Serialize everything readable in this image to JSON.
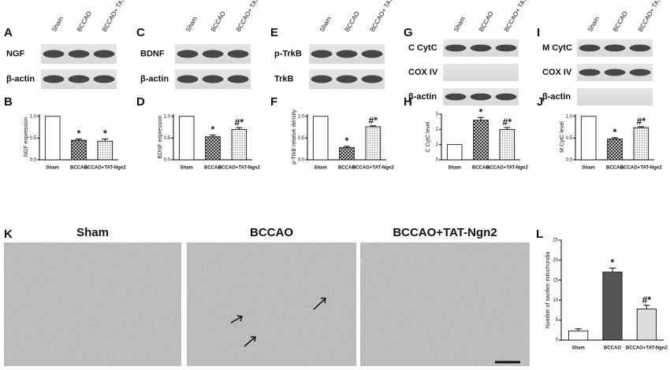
{
  "panels": [
    "A",
    "B",
    "C",
    "D",
    "E",
    "F",
    "G",
    "H",
    "I",
    "J",
    "K",
    "L"
  ],
  "blots": [
    {
      "lanes": [
        "Sham",
        "BCCAO",
        "BCCAO+ TAT-Ngn2"
      ],
      "rows": [
        {
          "label": "NGF"
        },
        {
          "label": "β-actin"
        }
      ]
    },
    {
      "lanes": [
        "Sham",
        "BCCAO",
        "BCCAO+ TAT-Ngn2"
      ],
      "rows": [
        {
          "label": "BDNF"
        },
        {
          "label": "β-actin"
        }
      ]
    },
    {
      "lanes": [
        "Sham",
        "BCCAO",
        "BCCAO+ TAT-Ngn2"
      ],
      "rows": [
        {
          "label": "p-TrkB"
        },
        {
          "label": "TrkB"
        }
      ]
    },
    {
      "lanes": [
        "Sham",
        "BCCAO",
        "BCCAO+ TAT-Ngn2"
      ],
      "rows": [
        {
          "label": "C CytC"
        },
        {
          "label": "COX IV",
          "blank": true
        },
        {
          "label": "β-actin"
        }
      ]
    },
    {
      "lanes": [
        "Sham",
        "BCCAO",
        "BCCAO+ TAT-Ngn2"
      ],
      "rows": [
        {
          "label": "M CytC"
        },
        {
          "label": "COX IV"
        },
        {
          "label": "β-actin",
          "blank": true
        }
      ]
    }
  ],
  "micrographs": [
    "Sham",
    "BCCAO",
    "BCCAO+TAT-Ngn2"
  ],
  "chart_data": [
    {
      "type": "bar",
      "y_label": "NGF expression",
      "categories": [
        "Sham",
        "BCCAO",
        "BCCAO+TAT-Ngn2"
      ],
      "values": [
        1,
        0.45,
        0.43
      ],
      "errors": [
        0,
        0.03,
        0.05
      ],
      "annotations": [
        null,
        "*",
        "*"
      ],
      "colors": [
        "#ffffff",
        "#444444",
        "#cccccc"
      ],
      "patterns": [
        "none",
        "crosshatch",
        "dots"
      ],
      "ylim": [
        0,
        1.05
      ],
      "yticks": [
        {
          "value": 0,
          "label": "0.0"
        },
        {
          "value": 0.5,
          "label": "0.5"
        },
        {
          "value": 1,
          "label": "1.0"
        }
      ]
    },
    {
      "type": "bar",
      "y_label": "BDNF expression",
      "categories": [
        "Sham",
        "BCCAO",
        "BCCAO+TAT-Ngn2"
      ],
      "values": [
        1,
        0.53,
        0.7
      ],
      "errors": [
        0,
        0.04,
        0.04
      ],
      "annotations": [
        null,
        "*",
        "#*"
      ],
      "colors": [
        "#ffffff",
        "#444444",
        "#cccccc"
      ],
      "patterns": [
        "none",
        "crosshatch",
        "dots"
      ],
      "ylim": [
        0,
        1.05
      ],
      "yticks": [
        {
          "value": 0,
          "label": "0.0"
        },
        {
          "value": 0.5,
          "label": "0.5"
        },
        {
          "value": 1,
          "label": "1.0"
        }
      ]
    },
    {
      "type": "bar",
      "y_label": "p-TrkB relative density",
      "categories": [
        "Sham",
        "BCCAO",
        "BCCAO+TAT-Ngn2"
      ],
      "values": [
        1,
        0.28,
        0.76
      ],
      "errors": [
        0,
        0.03,
        0.02
      ],
      "annotations": [
        null,
        "*",
        "#*"
      ],
      "colors": [
        "#ffffff",
        "#444444",
        "#cccccc"
      ],
      "patterns": [
        "none",
        "crosshatch",
        "dots"
      ],
      "ylim": [
        0,
        1.05
      ],
      "yticks": [
        {
          "value": 0,
          "label": "0.0"
        },
        {
          "value": 0.5,
          "label": "0.5"
        },
        {
          "value": 1,
          "label": "1.0"
        }
      ]
    },
    {
      "type": "bar",
      "y_label": "C CytC level",
      "categories": [
        "Sham",
        "BCCAO",
        "BCCAO+TAT-Ngn2"
      ],
      "values": [
        1,
        2.6,
        2.0
      ],
      "errors": [
        0,
        0.18,
        0.12
      ],
      "annotations": [
        null,
        "*",
        "#*"
      ],
      "colors": [
        "#ffffff",
        "#444444",
        "#cccccc"
      ],
      "patterns": [
        "none",
        "crosshatch",
        "dots"
      ],
      "ylim": [
        0,
        3
      ],
      "yticks": [
        0,
        1,
        2,
        3
      ]
    },
    {
      "type": "bar",
      "y_label": "M CytC level",
      "categories": [
        "Sham",
        "BCCAO",
        "BCCAO+TAT-Ngn2"
      ],
      "values": [
        1,
        0.48,
        0.74
      ],
      "errors": [
        0,
        0.03,
        0.02
      ],
      "annotations": [
        null,
        "*",
        "#*"
      ],
      "colors": [
        "#ffffff",
        "#444444",
        "#cccccc"
      ],
      "patterns": [
        "none",
        "crosshatch",
        "dots"
      ],
      "ylim": [
        0,
        1.05
      ],
      "yticks": [
        {
          "value": 0,
          "label": "0.0"
        },
        {
          "value": 0.5,
          "label": "0.5"
        },
        {
          "value": 1,
          "label": "1.0"
        }
      ]
    },
    {
      "type": "bar",
      "y_label": "Number of swollen mitochondia",
      "categories": [
        "Sham",
        "BCCAO",
        "BCCAO+TAT-Ngn2"
      ],
      "values": [
        2.3,
        17,
        7.8
      ],
      "errors": [
        0.5,
        1.0,
        0.9
      ],
      "annotations": [
        null,
        "*",
        "#*"
      ],
      "colors": [
        "#ffffff",
        "#555555",
        "#dddddd"
      ],
      "ylim": [
        0,
        25
      ],
      "yticks": [
        0,
        5,
        10,
        15,
        20,
        25
      ]
    }
  ]
}
